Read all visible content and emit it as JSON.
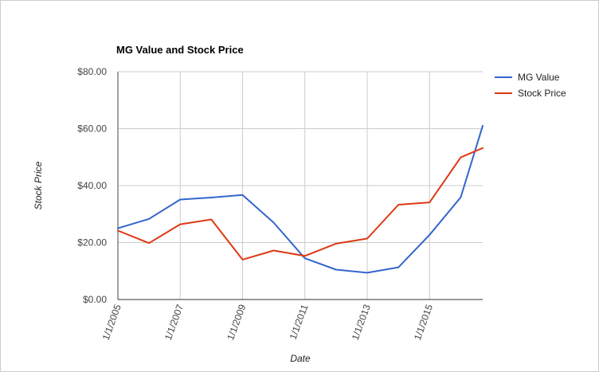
{
  "chart_data": {
    "type": "line",
    "title": "MG Value and Stock Price",
    "xlabel": "Date",
    "ylabel": "Stock Price",
    "x_range": [
      "2005-01-01",
      "2016-09-15"
    ],
    "ylim": [
      0,
      80
    ],
    "y_ticks": [
      0,
      20,
      40,
      60,
      80
    ],
    "y_tick_labels": [
      "$0.00",
      "$20.00",
      "$40.00",
      "$60.00",
      "$80.00"
    ],
    "x_ticks": [
      "2005-01-01",
      "2007-01-01",
      "2009-01-01",
      "2011-01-01",
      "2013-01-01",
      "2015-01-01"
    ],
    "x_tick_labels": [
      "1/1/2005",
      "1/1/2007",
      "1/1/2009",
      "1/1/2011",
      "1/1/2013",
      "1/1/2015"
    ],
    "grid": true,
    "legend_position": "right",
    "series": [
      {
        "name": "MG Value",
        "color": "#3366cc",
        "points": [
          [
            "2005-01-01",
            25.0
          ],
          [
            "2006-01-01",
            28.3
          ],
          [
            "2007-01-01",
            35.1
          ],
          [
            "2008-01-01",
            35.8
          ],
          [
            "2009-01-01",
            36.7
          ],
          [
            "2010-01-01",
            27.0
          ],
          [
            "2011-01-01",
            14.5
          ],
          [
            "2012-01-01",
            10.5
          ],
          [
            "2013-01-01",
            9.4
          ],
          [
            "2014-01-01",
            11.3
          ],
          [
            "2015-01-01",
            22.7
          ],
          [
            "2016-01-01",
            35.9
          ],
          [
            "2016-09-15",
            61.0
          ]
        ]
      },
      {
        "name": "Stock Price",
        "color": "#dc3912",
        "points": [
          [
            "2005-01-01",
            24.2
          ],
          [
            "2006-01-01",
            19.8
          ],
          [
            "2007-01-01",
            26.4
          ],
          [
            "2008-01-01",
            28.1
          ],
          [
            "2009-01-01",
            14.0
          ],
          [
            "2010-01-01",
            17.2
          ],
          [
            "2011-01-01",
            15.3
          ],
          [
            "2012-01-01",
            19.6
          ],
          [
            "2013-01-01",
            21.4
          ],
          [
            "2014-01-01",
            33.3
          ],
          [
            "2015-01-01",
            34.1
          ],
          [
            "2016-01-01",
            49.9
          ],
          [
            "2016-09-15",
            53.2
          ]
        ]
      }
    ]
  }
}
